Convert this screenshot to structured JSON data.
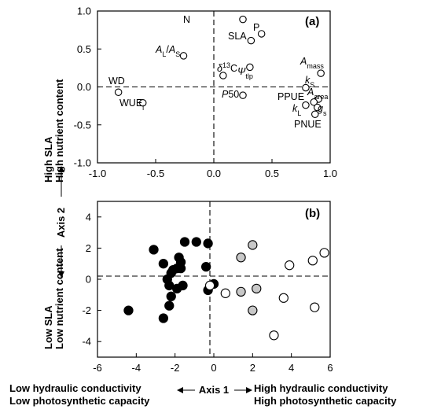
{
  "chart_data": [
    {
      "panel": "(a)",
      "type": "scatter",
      "xlim": [
        -1.0,
        1.0
      ],
      "ylim": [
        -1.0,
        1.0
      ],
      "xticks": [
        "-1.0",
        "-0.5",
        "0.0",
        "0.5",
        "1.0"
      ],
      "yticks": [
        "1.0",
        "0.5",
        "0.0",
        "-0.5",
        "-1.0"
      ],
      "reference_lines": {
        "x": 0,
        "y": 0
      },
      "points": [
        {
          "label": "N",
          "x": 0.25,
          "y": 0.89
        },
        {
          "label": "P",
          "x": 0.41,
          "y": 0.7
        },
        {
          "label": "SLA",
          "x": 0.32,
          "y": 0.61
        },
        {
          "label": "AL/AS",
          "x": -0.26,
          "y": 0.41
        },
        {
          "label": "δ13C",
          "x": 0.08,
          "y": 0.15
        },
        {
          "label": "Ψtlp",
          "x": 0.31,
          "y": 0.26
        },
        {
          "label": "Amass",
          "x": 0.92,
          "y": 0.18
        },
        {
          "label": "kS",
          "x": 0.79,
          "y": -0.01
        },
        {
          "label": "Aarea",
          "x": 0.9,
          "y": -0.16
        },
        {
          "label": "PPUE",
          "x": 0.86,
          "y": -0.2
        },
        {
          "label": "kL",
          "x": 0.79,
          "y": -0.24
        },
        {
          "label": "gs",
          "x": 0.89,
          "y": -0.27
        },
        {
          "label": "PNUE",
          "x": 0.87,
          "y": -0.36
        },
        {
          "label": "P50",
          "x": 0.25,
          "y": -0.11
        },
        {
          "label": "WD",
          "x": -0.82,
          "y": -0.07
        },
        {
          "label": "WUEi",
          "x": -0.61,
          "y": -0.21
        }
      ]
    },
    {
      "panel": "(b)",
      "type": "scatter",
      "xlim": [
        -6,
        6
      ],
      "ylim": [
        -5,
        5
      ],
      "xticks": [
        "-6",
        "-4",
        "-2",
        "0",
        "2",
        "4",
        "6"
      ],
      "yticks": [
        "4",
        "2",
        "0",
        "-2",
        "-4"
      ],
      "reference_lines": {
        "x": 0,
        "y": 0
      },
      "colors": {
        "black": "#000000",
        "grey": "#c8c8c8",
        "white": "#ffffff"
      },
      "series": [
        {
          "fill": "black",
          "points": [
            [
              -4.4,
              -2.0
            ],
            [
              -3.1,
              1.9
            ],
            [
              -2.6,
              -2.5
            ],
            [
              -2.6,
              1.0
            ],
            [
              -2.4,
              0.0
            ],
            [
              -2.3,
              -0.4
            ],
            [
              -2.3,
              -1.7
            ],
            [
              -2.2,
              0.4
            ],
            [
              -2.2,
              -1.1
            ],
            [
              -2.1,
              0.6
            ],
            [
              -1.9,
              0.7
            ],
            [
              -1.9,
              -0.6
            ],
            [
              -1.8,
              1.4
            ],
            [
              -1.7,
              0.7
            ],
            [
              -1.7,
              1.1
            ],
            [
              -1.6,
              -0.4
            ],
            [
              -1.5,
              2.4
            ],
            [
              -0.9,
              2.4
            ],
            [
              -0.4,
              0.8
            ],
            [
              -0.3,
              -0.7
            ],
            [
              -0.3,
              2.3
            ],
            [
              0.0,
              -0.3
            ]
          ]
        },
        {
          "fill": "grey",
          "points": [
            [
              1.4,
              1.4
            ],
            [
              1.4,
              -0.8
            ],
            [
              2.0,
              2.2
            ],
            [
              2.0,
              -2.0
            ],
            [
              2.2,
              -0.6
            ]
          ]
        },
        {
          "fill": "white",
          "points": [
            [
              -0.2,
              -0.4
            ],
            [
              0.6,
              -0.9
            ],
            [
              3.1,
              -3.6
            ],
            [
              3.6,
              -1.2
            ],
            [
              3.9,
              0.9
            ],
            [
              5.1,
              1.2
            ],
            [
              5.2,
              -1.8
            ],
            [
              5.7,
              1.7
            ]
          ]
        }
      ]
    }
  ],
  "axis2": {
    "title": "Axis 2",
    "top_line1": "High SLA",
    "top_line2": "High nutrient content",
    "bottom_line1": "Low SLA",
    "bottom_line2": "Low nutrient content"
  },
  "axis1": {
    "title": "Axis 1",
    "left_line1": "Low hydraulic conductivity",
    "left_line2": "Low photosynthetic capacity",
    "right_line1": "High hydraulic conductivity",
    "right_line2": "High photosynthetic capacity"
  }
}
